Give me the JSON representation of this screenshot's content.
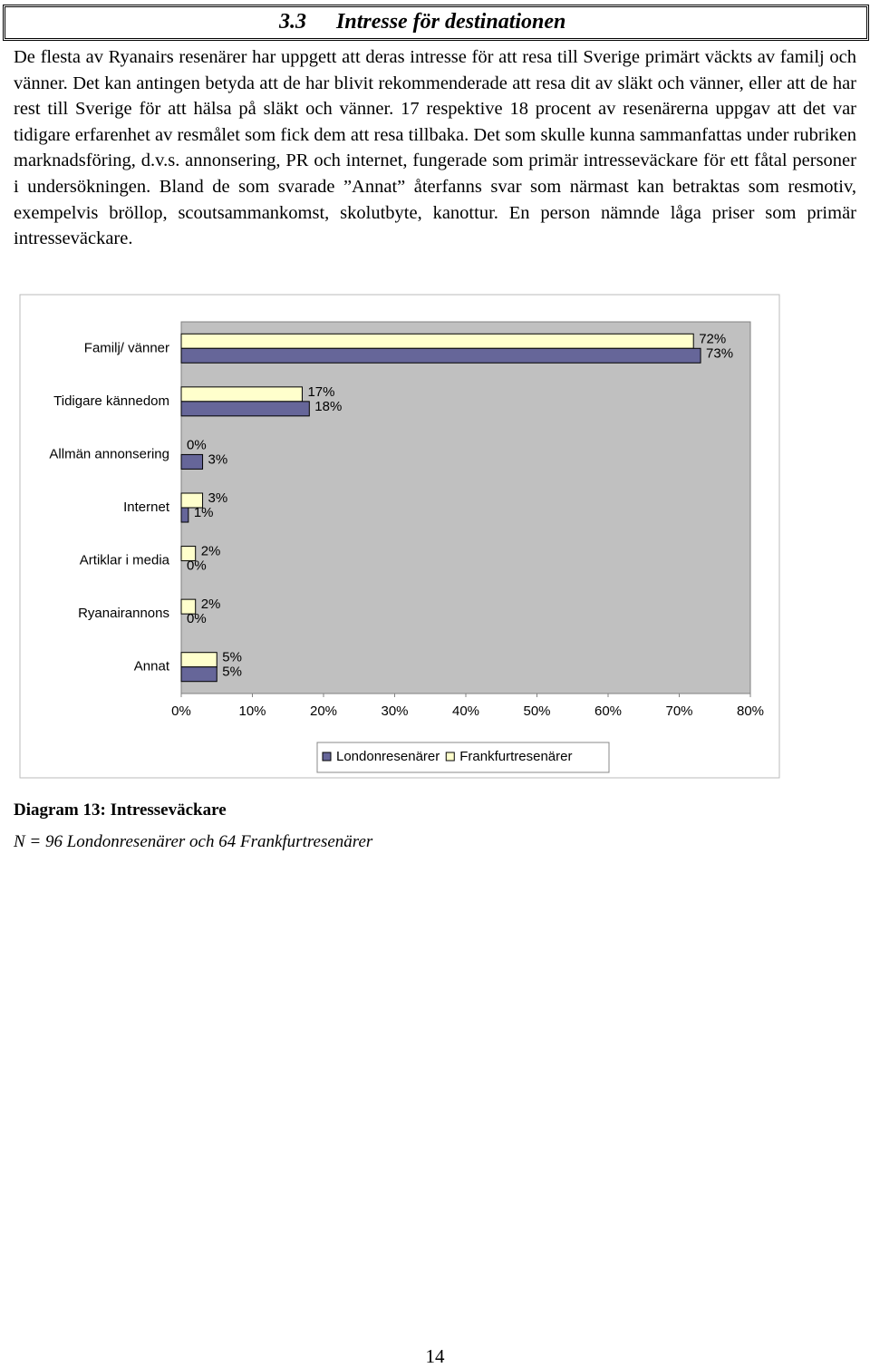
{
  "heading": {
    "number": "3.3",
    "title": "Intresse för destinationen"
  },
  "paragraph": "De flesta av Ryanairs resenärer har uppgett att deras intresse för att resa till Sverige primärt väckts av familj och vänner. Det kan antingen betyda att de har blivit rekommenderade att resa dit av släkt och vänner, eller att de har rest till Sverige för att hälsa på släkt och vänner. 17 respektive 18 procent av resenärerna uppgav att det var tidigare erfarenhet av resmålet som fick dem att resa tillbaka. Det som skulle kunna sammanfattas under rubriken marknadsföring, d.v.s. annonsering, PR och internet, fungerade som primär intresseväckare för ett fåtal personer i undersökningen. Bland de som svarade ”Annat” återfanns svar som närmast kan betraktas som resmotiv, exempelvis bröllop, scoutsammankomst, skolutbyte, kanottur. En person nämnde låga priser som primär intresseväckare.",
  "chart_data": {
    "type": "hbar",
    "categories": [
      "Familj/ vänner",
      "Tidigare kännedom",
      "Allmän annonsering",
      "Internet",
      "Artiklar i media",
      "Ryanairannons",
      "Annat"
    ],
    "series": [
      {
        "name": "Londonresenärer",
        "color": "#666699",
        "values": [
          73,
          18,
          3,
          1,
          0,
          0,
          5
        ],
        "value_labels": [
          "73%",
          "18%",
          "3%",
          "1%",
          "0%",
          "0%",
          "5%"
        ]
      },
      {
        "name": "Frankfurtresenärer",
        "color": "#ffffcc",
        "values": [
          72,
          17,
          0,
          3,
          2,
          2,
          5
        ],
        "value_labels": [
          "72%",
          "17%",
          "0%",
          "3%",
          "2%",
          "2%",
          "5%"
        ]
      }
    ],
    "xlim": [
      0,
      80
    ],
    "xticks": [
      {
        "value": 0,
        "label": "0%"
      },
      {
        "value": 10,
        "label": "10%"
      },
      {
        "value": 20,
        "label": "20%"
      },
      {
        "value": 30,
        "label": "30%"
      },
      {
        "value": 40,
        "label": "40%"
      },
      {
        "value": 50,
        "label": "50%"
      },
      {
        "value": 60,
        "label": "60%"
      },
      {
        "value": 70,
        "label": "70%"
      },
      {
        "value": 80,
        "label": "80%"
      }
    ],
    "plot_background": "#c0c0c0",
    "legend": "bottom"
  },
  "caption": {
    "title": "Diagram 13: Intresseväckare",
    "note": "N = 96 Londonresenärer och 64 Frankfurtresenärer"
  },
  "page_number": "14"
}
